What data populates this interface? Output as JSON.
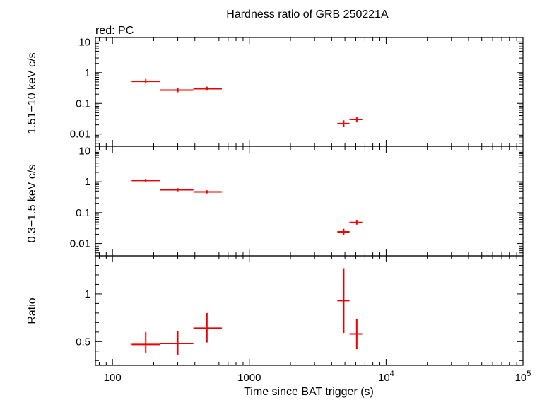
{
  "chart_data": [
    {
      "type": "scatter",
      "panel": "hard",
      "title": "Hardness ratio of GRB 250221A",
      "subtitle": "red: PC",
      "ylabel": "1.51−10 keV c/s",
      "xlabel": "",
      "xscale": "log",
      "yscale": "log",
      "xlim": [
        75,
        100000
      ],
      "ylim": [
        0.004,
        14
      ],
      "yticklabels": [
        {
          "v": 10,
          "t": "10"
        },
        {
          "v": 1,
          "t": "1"
        },
        {
          "v": 0.1,
          "t": "0.1"
        },
        {
          "v": 0.01,
          "t": "0.01"
        }
      ],
      "color": "#ee0000",
      "points": [
        {
          "x": 175,
          "xlo": 138,
          "xhi": 222,
          "y": 0.52,
          "ylo": 0.44,
          "yhi": 0.62
        },
        {
          "x": 300,
          "xlo": 222,
          "xhi": 390,
          "y": 0.27,
          "ylo": 0.23,
          "yhi": 0.32
        },
        {
          "x": 490,
          "xlo": 390,
          "xhi": 630,
          "y": 0.3,
          "ylo": 0.26,
          "yhi": 0.35
        },
        {
          "x": 4900,
          "xlo": 4400,
          "xhi": 5400,
          "y": 0.022,
          "ylo": 0.017,
          "yhi": 0.028
        },
        {
          "x": 6100,
          "xlo": 5400,
          "xhi": 6700,
          "y": 0.03,
          "ylo": 0.024,
          "yhi": 0.037
        }
      ]
    },
    {
      "type": "scatter",
      "panel": "soft",
      "ylabel": "0.3−1.5 keV c/s",
      "xlabel": "",
      "xscale": "log",
      "yscale": "log",
      "xlim": [
        75,
        100000
      ],
      "ylim": [
        0.004,
        14
      ],
      "yticklabels": [
        {
          "v": 10,
          "t": "10"
        },
        {
          "v": 1,
          "t": "1"
        },
        {
          "v": 0.1,
          "t": "0.1"
        },
        {
          "v": 0.01,
          "t": "0.01"
        }
      ],
      "color": "#ee0000",
      "points": [
        {
          "x": 175,
          "xlo": 138,
          "xhi": 222,
          "y": 1.1,
          "ylo": 0.97,
          "yhi": 1.25
        },
        {
          "x": 300,
          "xlo": 222,
          "xhi": 390,
          "y": 0.55,
          "ylo": 0.49,
          "yhi": 0.62
        },
        {
          "x": 490,
          "xlo": 390,
          "xhi": 630,
          "y": 0.47,
          "ylo": 0.42,
          "yhi": 0.53
        },
        {
          "x": 4900,
          "xlo": 4400,
          "xhi": 5400,
          "y": 0.024,
          "ylo": 0.019,
          "yhi": 0.03
        },
        {
          "x": 6100,
          "xlo": 5400,
          "xhi": 6700,
          "y": 0.048,
          "ylo": 0.041,
          "yhi": 0.056
        }
      ]
    },
    {
      "type": "scatter",
      "panel": "ratio",
      "ylabel": "Ratio",
      "xlabel": "Time since BAT trigger (s)",
      "xscale": "log",
      "yscale": "linear",
      "xlim": [
        75,
        100000
      ],
      "ylim": [
        0.25,
        1.4
      ],
      "yticklabels": [
        {
          "v": 1,
          "t": "1"
        },
        {
          "v": 0.5,
          "t": "0.5"
        }
      ],
      "xticklabels": [
        {
          "v": 100,
          "t": "100",
          "sup": ""
        },
        {
          "v": 1000,
          "t": "1000",
          "sup": ""
        },
        {
          "v": 10000,
          "t": "10",
          "sup": "4"
        },
        {
          "v": 100000,
          "t": "10",
          "sup": "5"
        }
      ],
      "color": "#ee0000",
      "points": [
        {
          "x": 175,
          "xlo": 138,
          "xhi": 222,
          "y": 0.47,
          "ylo": 0.38,
          "yhi": 0.6
        },
        {
          "x": 300,
          "xlo": 222,
          "xhi": 390,
          "y": 0.48,
          "ylo": 0.36,
          "yhi": 0.61
        },
        {
          "x": 490,
          "xlo": 390,
          "xhi": 630,
          "y": 0.64,
          "ylo": 0.49,
          "yhi": 0.8
        },
        {
          "x": 4900,
          "xlo": 4400,
          "xhi": 5400,
          "y": 0.93,
          "ylo": 0.59,
          "yhi": 1.27
        },
        {
          "x": 6100,
          "xlo": 5400,
          "xhi": 6700,
          "y": 0.58,
          "ylo": 0.42,
          "yhi": 0.74
        }
      ]
    }
  ]
}
